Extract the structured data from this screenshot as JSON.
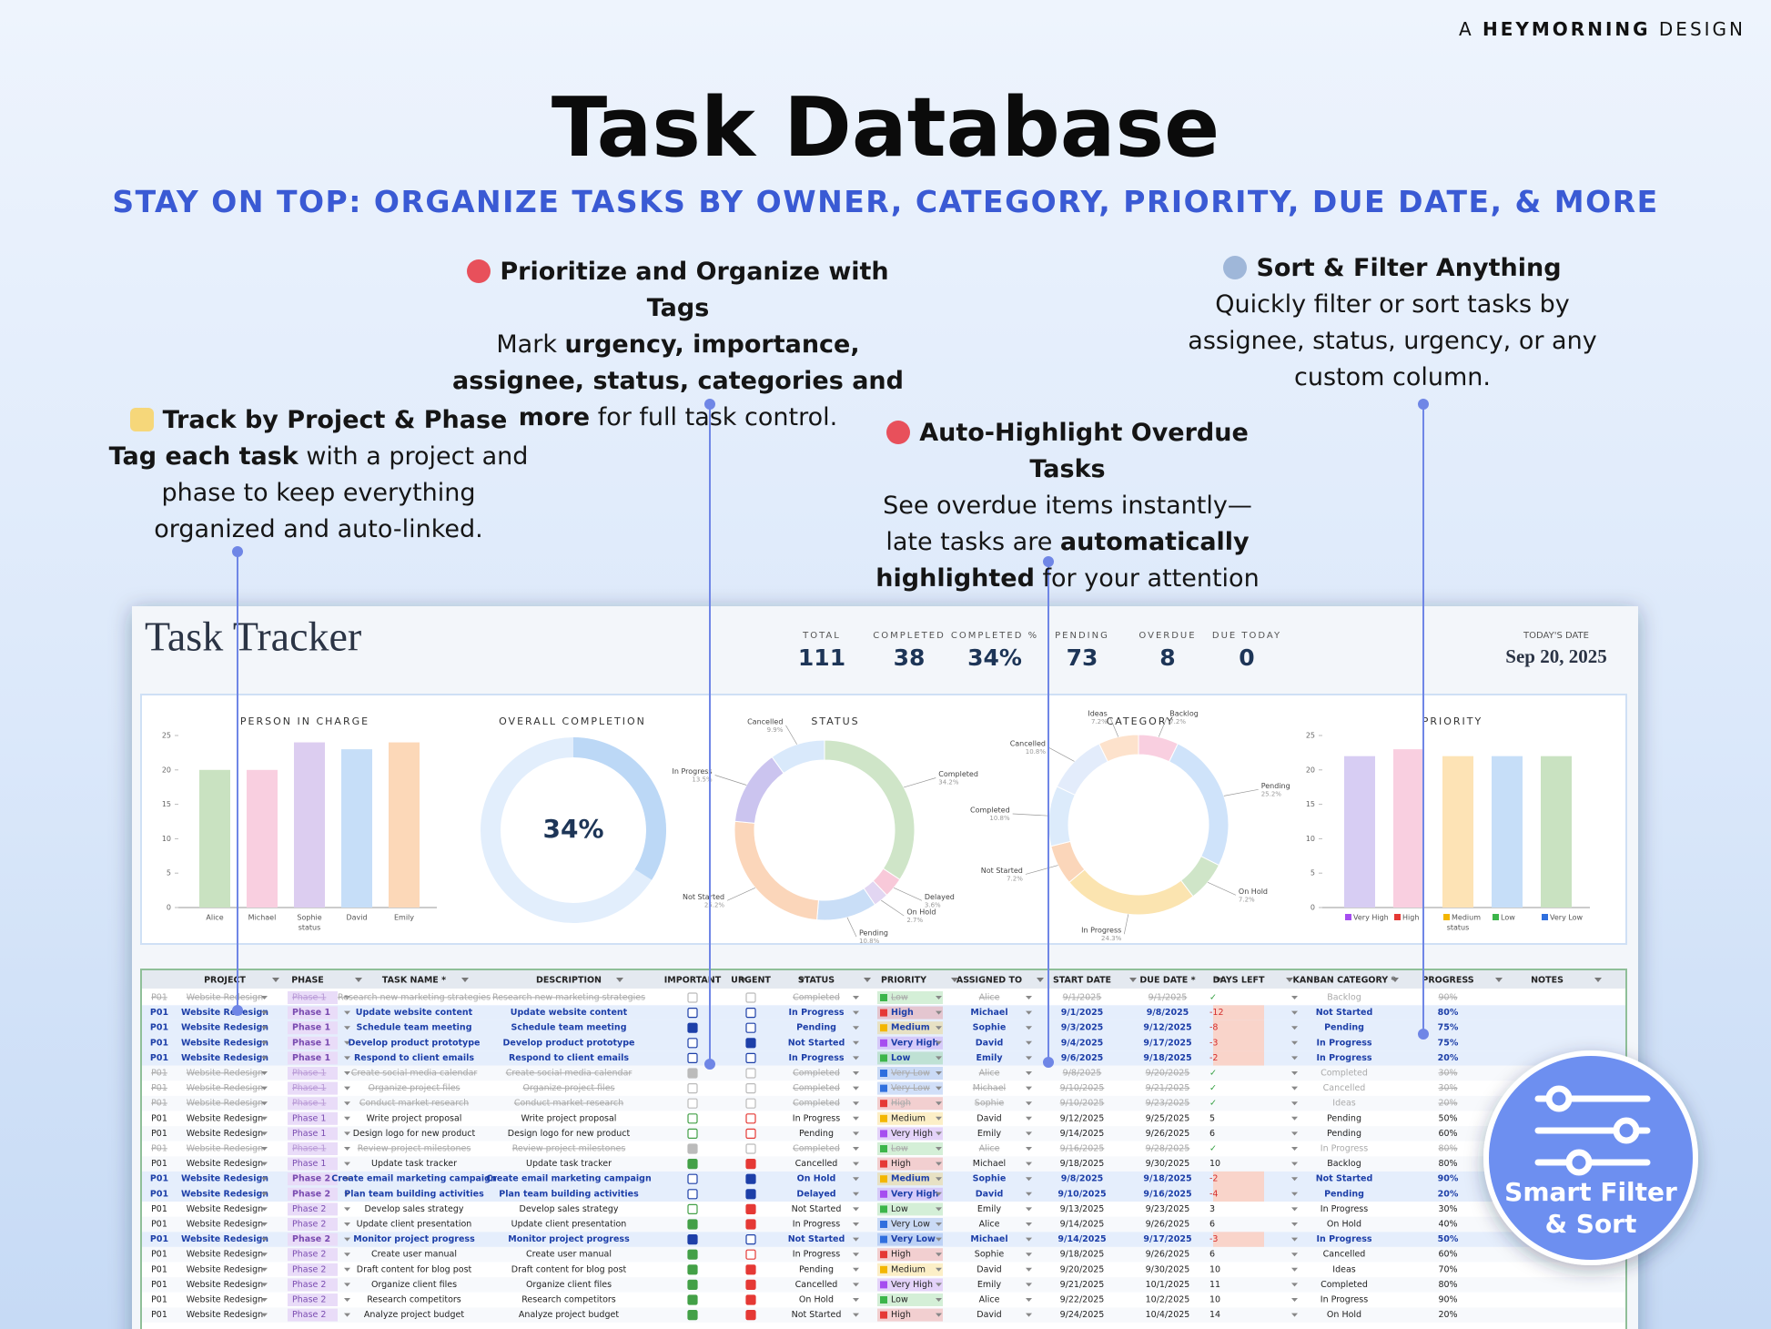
{
  "header": {
    "brand_prefix": "A",
    "brand": "HEYMORNING",
    "brand_suffix": "DESIGN",
    "title": "Task Database",
    "subtitle": "STAY ON TOP: ORGANIZE TASKS BY OWNER, CATEGORY, PRIORITY, DUE DATE, & MORE"
  },
  "callouts": [
    {
      "title": "Track by Project & Phase",
      "body": [
        {
          "text": "Tag each task",
          "bold": true
        },
        {
          "text": " with a project and phase to keep everything organized and auto-linked.",
          "bold": false
        }
      ]
    },
    {
      "title": "Prioritize and Organize with Tags",
      "body": [
        {
          "text": "Mark ",
          "bold": false
        },
        {
          "text": "urgency, importance, assignee, status, categories and more",
          "bold": true
        },
        {
          "text": " for full task control.",
          "bold": false
        }
      ]
    },
    {
      "title": "Auto-Highlight Overdue Tasks",
      "body": [
        {
          "text": "See overdue items instantly—late tasks are ",
          "bold": false
        },
        {
          "text": "automatically highlighted",
          "bold": true
        },
        {
          "text": " for your attention",
          "bold": false
        }
      ]
    },
    {
      "title": "Sort & Filter Anything",
      "body": [
        {
          "text": "Quickly filter or sort tasks by assignee, status, urgency, or any custom column.",
          "bold": false
        }
      ]
    }
  ],
  "tracker": {
    "title": "Task Tracker",
    "kpis": [
      {
        "label": "TOTAL",
        "value": 111
      },
      {
        "label": "COMPLETED",
        "value": 38
      },
      {
        "label": "COMPLETED %",
        "value": "34%"
      },
      {
        "label": "PENDING",
        "value": 73
      },
      {
        "label": "OVERDUE",
        "value": 8
      },
      {
        "label": "DUE TODAY",
        "value": 0
      }
    ],
    "date_label": "TODAY'S DATE",
    "date": "Sep 20, 2025"
  },
  "chart_data": [
    {
      "type": "bar",
      "title": "PERSON IN CHARGE",
      "categories": [
        "Alice",
        "Michael",
        "Sophie",
        "David",
        "Emily"
      ],
      "values": [
        20,
        20,
        24,
        23,
        24
      ],
      "colors": [
        "#c9e2c1",
        "#f9cfe0",
        "#dccdf0",
        "#c6def8",
        "#fcd8b8"
      ],
      "x_label": "status",
      "ylim": [
        0,
        25
      ],
      "yticks": [
        0,
        5,
        10,
        15,
        20,
        25
      ]
    },
    {
      "type": "gauge",
      "title": "OVERALL COMPLETION",
      "value": 34,
      "value_label": "34%",
      "range": [
        0,
        100
      ],
      "color": "#bcd8f6",
      "track_color": "#e2eefc"
    },
    {
      "type": "donut",
      "title": "STATUS",
      "categories": [
        "Completed",
        "Delayed",
        "On Hold",
        "Pending",
        "Not Started",
        "In Progress",
        "Cancelled"
      ],
      "values": [
        34.2,
        3.6,
        2.7,
        10.8,
        25.2,
        13.5,
        9.9
      ],
      "value_labels": [
        "34.2%",
        "3.6%",
        "2.7%",
        "10.8%",
        "25.2%",
        "13.5%",
        "9.9%"
      ],
      "colors": [
        "#cfe5c8",
        "#f8c9d9",
        "#e2d6f2",
        "#c9def7",
        "#fbd6ba",
        "#cbc4ef",
        "#d9e9fb"
      ]
    },
    {
      "type": "donut",
      "title": "CATEGORY",
      "categories": [
        "Backlog",
        "Pending",
        "On Hold",
        "In Progress",
        "Not Started",
        "Completed",
        "Cancelled",
        "Ideas"
      ],
      "values": [
        7.2,
        25.2,
        7.2,
        24.3,
        7.2,
        10.8,
        10.8,
        7.2
      ],
      "value_labels": [
        "7.2%",
        "25.2%",
        "7.2%",
        "24.3%",
        "7.2%",
        "10.8%",
        "10.8%",
        "7.2%"
      ],
      "colors": [
        "#f9cfe0",
        "#cfe3fa",
        "#cfe5c8",
        "#fbe4b0",
        "#fbd6ba",
        "#dcebfb",
        "#e3ecfb",
        "#fde2cc"
      ]
    },
    {
      "type": "bar",
      "title": "PRIORITY",
      "categories": [
        "Very High",
        "High",
        "Medium",
        "Low",
        "Very Low"
      ],
      "values": [
        22,
        23,
        22,
        22,
        22
      ],
      "colors": [
        "#d7cdf3",
        "#f9cfe0",
        "#fde3b5",
        "#c6def8",
        "#c9e2c1"
      ],
      "legend_colors": [
        "#a64df0",
        "#e53935",
        "#f3b600",
        "#3cb54a",
        "#2f6fde"
      ],
      "x_label": "status",
      "ylim": [
        0,
        25
      ],
      "yticks": [
        0,
        5,
        10,
        15,
        20,
        25
      ]
    }
  ],
  "table": {
    "columns": [
      "PROJECT",
      "PHASE",
      "TASK NAME *",
      "DESCRIPTION",
      "IMPORTANT",
      "URGENT",
      "STATUS",
      "PRIORITY",
      "ASSIGNED TO",
      "START DATE",
      "DUE DATE *",
      "DAYS LEFT",
      "KANBAN CATEGORY *",
      "PROGRESS",
      "NOTES"
    ],
    "priority_colors": {
      "Very High": "#a64df0",
      "High": "#e53935",
      "Medium": "#f3b600",
      "Low": "#3cb54a",
      "Very Low": "#2f6fde"
    },
    "rows": [
      [
        "P01",
        "Website Redesign",
        "Phase 1",
        "Research new marketing strategies",
        "Research new marketing strategies",
        false,
        false,
        "Completed",
        "Low",
        "Alice",
        "9/1/2025",
        "9/1/2025",
        "✓",
        "Backlog",
        "90%"
      ],
      [
        "P01",
        "Website Redesign",
        "Phase 1",
        "Update website content",
        "Update website content",
        false,
        false,
        "In Progress",
        "High",
        "Michael",
        "9/1/2025",
        "9/8/2025",
        -12,
        "Not Started",
        "80%"
      ],
      [
        "P01",
        "Website Redesign",
        "Phase 1",
        "Schedule team meeting",
        "Schedule team meeting",
        true,
        false,
        "Pending",
        "Medium",
        "Sophie",
        "9/3/2025",
        "9/12/2025",
        -8,
        "Pending",
        "75%"
      ],
      [
        "P01",
        "Website Redesign",
        "Phase 1",
        "Develop product prototype",
        "Develop product prototype",
        false,
        true,
        "Not Started",
        "Very High",
        "David",
        "9/4/2025",
        "9/17/2025",
        -3,
        "In Progress",
        "75%"
      ],
      [
        "P01",
        "Website Redesign",
        "Phase 1",
        "Respond to client emails",
        "Respond to client emails",
        false,
        false,
        "In Progress",
        "Low",
        "Emily",
        "9/6/2025",
        "9/18/2025",
        -2,
        "In Progress",
        "20%"
      ],
      [
        "P01",
        "Website Redesign",
        "Phase 1",
        "Create social media calendar",
        "Create social media calendar",
        true,
        false,
        "Completed",
        "Very Low",
        "Alice",
        "9/8/2025",
        "9/20/2025",
        "✓",
        "Completed",
        "30%"
      ],
      [
        "P01",
        "Website Redesign",
        "Phase 1",
        "Organize project files",
        "Organize project files",
        false,
        false,
        "Completed",
        "Very Low",
        "Michael",
        "9/10/2025",
        "9/21/2025",
        "✓",
        "Cancelled",
        "30%"
      ],
      [
        "P01",
        "Website Redesign",
        "Phase 1",
        "Conduct market research",
        "Conduct market research",
        false,
        false,
        "Completed",
        "High",
        "Sophie",
        "9/10/2025",
        "9/23/2025",
        "✓",
        "Ideas",
        "20%"
      ],
      [
        "P01",
        "Website Redesign",
        "Phase 1",
        "Write project proposal",
        "Write project proposal",
        false,
        false,
        "In Progress",
        "Medium",
        "David",
        "9/12/2025",
        "9/25/2025",
        5,
        "Pending",
        "50%"
      ],
      [
        "P01",
        "Website Redesign",
        "Phase 1",
        "Design logo for new product",
        "Design logo for new product",
        false,
        false,
        "Pending",
        "Very High",
        "Emily",
        "9/14/2025",
        "9/26/2025",
        6,
        "Pending",
        "60%"
      ],
      [
        "P01",
        "Website Redesign",
        "Phase 1",
        "Review project milestones",
        "Review project milestones",
        true,
        false,
        "Completed",
        "Low",
        "Alice",
        "9/16/2025",
        "9/28/2025",
        "✓",
        "In Progress",
        "80%"
      ],
      [
        "P01",
        "Website Redesign",
        "Phase 1",
        "Update task tracker",
        "Update task tracker",
        true,
        true,
        "Cancelled",
        "High",
        "Michael",
        "9/18/2025",
        "9/30/2025",
        10,
        "Backlog",
        "80%"
      ],
      [
        "P01",
        "Website Redesign",
        "Phase 2",
        "Create email marketing campaign",
        "Create email marketing campaign",
        false,
        true,
        "On Hold",
        "Medium",
        "Sophie",
        "9/8/2025",
        "9/18/2025",
        -2,
        "Not Started",
        "90%"
      ],
      [
        "P01",
        "Website Redesign",
        "Phase 2",
        "Plan team building activities",
        "Plan team building activities",
        false,
        true,
        "Delayed",
        "Very High",
        "David",
        "9/10/2025",
        "9/16/2025",
        -4,
        "Pending",
        "20%"
      ],
      [
        "P01",
        "Website Redesign",
        "Phase 2",
        "Develop sales strategy",
        "Develop sales strategy",
        false,
        true,
        "Not Started",
        "Low",
        "Emily",
        "9/13/2025",
        "9/23/2025",
        3,
        "In Progress",
        "30%"
      ],
      [
        "P01",
        "Website Redesign",
        "Phase 2",
        "Update client presentation",
        "Update client presentation",
        true,
        true,
        "In Progress",
        "Very Low",
        "Alice",
        "9/14/2025",
        "9/26/2025",
        6,
        "On Hold",
        "40%"
      ],
      [
        "P01",
        "Website Redesign",
        "Phase 2",
        "Monitor project progress",
        "Monitor project progress",
        true,
        false,
        "Not Started",
        "Very Low",
        "Michael",
        "9/14/2025",
        "9/17/2025",
        -3,
        "In Progress",
        "50%"
      ],
      [
        "P01",
        "Website Redesign",
        "Phase 2",
        "Create user manual",
        "Create user manual",
        true,
        false,
        "In Progress",
        "High",
        "Sophie",
        "9/18/2025",
        "9/26/2025",
        6,
        "Cancelled",
        "60%"
      ],
      [
        "P01",
        "Website Redesign",
        "Phase 2",
        "Draft content for blog post",
        "Draft content for blog post",
        true,
        true,
        "Pending",
        "Medium",
        "David",
        "9/20/2025",
        "9/30/2025",
        10,
        "Ideas",
        "70%"
      ],
      [
        "P01",
        "Website Redesign",
        "Phase 2",
        "Organize client files",
        "Organize client files",
        true,
        true,
        "Cancelled",
        "Very High",
        "Emily",
        "9/21/2025",
        "10/1/2025",
        11,
        "Completed",
        "80%"
      ],
      [
        "P01",
        "Website Redesign",
        "Phase 2",
        "Research competitors",
        "Research competitors",
        true,
        true,
        "On Hold",
        "Low",
        "Alice",
        "9/22/2025",
        "10/2/2025",
        10,
        "In Progress",
        "90%"
      ],
      [
        "P01",
        "Website Redesign",
        "Phase 2",
        "Analyze project budget",
        "Analyze project budget",
        true,
        true,
        "Not Started",
        "High",
        "David",
        "9/24/2025",
        "10/4/2025",
        14,
        "On Hold",
        "20%"
      ]
    ]
  },
  "badge": {
    "lines": [
      "Smart Filter",
      "& Sort"
    ]
  }
}
